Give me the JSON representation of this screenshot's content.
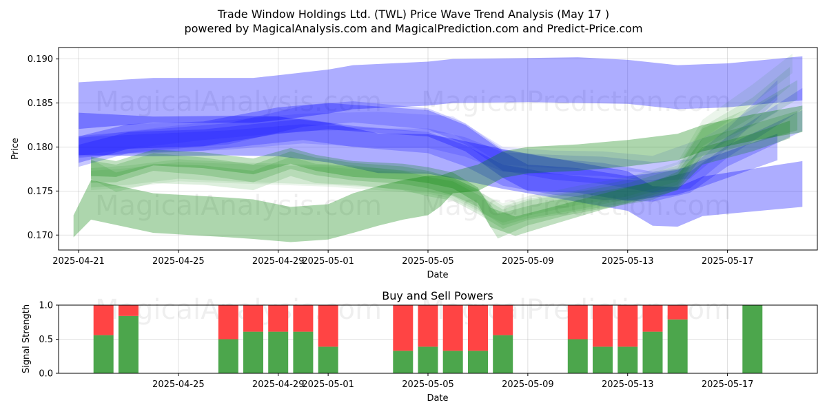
{
  "chart_data": [
    {
      "type": "area",
      "title": "Trade Window Holdings Ltd. (TWL) Price Wave Trend Analysis (May 17 )",
      "subtitle": "powered by MagicalAnalysis.com and MagicalPrediction.com and Predict-Price.com",
      "xlabel": "Date",
      "ylabel": "Price",
      "ylim": [
        0.1683,
        0.1913
      ],
      "xlim_days": [
        -0.8,
        29.6
      ],
      "x_origin": "2025-04-21",
      "xticks": [
        {
          "day": 0,
          "label": "2025-04-21"
        },
        {
          "day": 4,
          "label": "2025-04-25"
        },
        {
          "day": 8,
          "label": "2025-04-29"
        },
        {
          "day": 10,
          "label": "2025-05-01"
        },
        {
          "day": 14,
          "label": "2025-05-05"
        },
        {
          "day": 18,
          "label": "2025-05-09"
        },
        {
          "day": 22,
          "label": "2025-05-13"
        },
        {
          "day": 26,
          "label": "2025-05-17"
        }
      ],
      "yticks": [
        {
          "value": 0.17,
          "label": "0.170"
        },
        {
          "value": 0.175,
          "label": "0.175"
        },
        {
          "value": 0.18,
          "label": "0.180"
        },
        {
          "value": 0.185,
          "label": "0.185"
        },
        {
          "value": 0.19,
          "label": "0.190"
        }
      ],
      "watermarks": [
        "MagicalAnalysis.com",
        "MagicalPrediction.com",
        "MagicalAnalysis.com",
        "MagicalPrediction.com"
      ],
      "bands": [
        {
          "color": "#0000ff",
          "opacity": 0.32,
          "x": [
            0,
            3,
            7,
            8,
            10,
            11,
            14,
            15,
            18,
            20,
            22,
            24,
            26,
            29
          ],
          "y": [
            0.1847,
            0.1853,
            0.1853,
            0.1856,
            0.1863,
            0.1868,
            0.1872,
            0.1875,
            0.1876,
            0.1876,
            0.1874,
            0.1868,
            0.187,
            0.1878
          ],
          "w": [
            0.0053,
            0.0051,
            0.0051,
            0.0051,
            0.005,
            0.005,
            0.005,
            0.005,
            0.005,
            0.0052,
            0.005,
            0.005,
            0.005,
            0.005
          ]
        },
        {
          "color": "#0000ff",
          "opacity": 0.32,
          "x": [
            0,
            3,
            6,
            8,
            10,
            12,
            14,
            15,
            17,
            20,
            22,
            23,
            24,
            25,
            29
          ],
          "y": [
            0.1815,
            0.1812,
            0.1813,
            0.1812,
            0.1805,
            0.1793,
            0.1792,
            0.1787,
            0.1775,
            0.176,
            0.175,
            0.1733,
            0.1732,
            0.1744,
            0.1758
          ],
          "w": [
            0.0048,
            0.0045,
            0.0045,
            0.0045,
            0.0045,
            0.0045,
            0.0045,
            0.0045,
            0.0045,
            0.0045,
            0.0045,
            0.0045,
            0.0045,
            0.0045,
            0.0052
          ]
        },
        {
          "color": "#0000ff",
          "opacity": 0.28,
          "x": [
            0,
            2,
            5,
            8,
            10,
            14,
            15.5,
            17,
            18,
            20,
            22,
            24,
            25,
            28
          ],
          "y": [
            0.1797,
            0.1812,
            0.1815,
            0.183,
            0.1835,
            0.1827,
            0.181,
            0.178,
            0.1765,
            0.1762,
            0.1753,
            0.176,
            0.177,
            0.18
          ],
          "w": [
            0.003,
            0.0028,
            0.0028,
            0.003,
            0.003,
            0.003,
            0.003,
            0.003,
            0.003,
            0.0028,
            0.0028,
            0.0028,
            0.003,
            0.003
          ]
        },
        {
          "color": "#0000ff",
          "opacity": 0.22,
          "x": [
            0,
            2,
            5,
            9,
            11,
            14,
            15.5,
            17,
            19,
            21,
            23,
            24.5,
            26,
            29
          ],
          "y": [
            0.179,
            0.1805,
            0.1808,
            0.182,
            0.1812,
            0.1805,
            0.179,
            0.1768,
            0.1758,
            0.1752,
            0.175,
            0.176,
            0.179,
            0.183
          ],
          "w": [
            0.0025,
            0.0024,
            0.0024,
            0.0024,
            0.0024,
            0.0024,
            0.0024,
            0.0024,
            0.0024,
            0.0024,
            0.0024,
            0.0024,
            0.0024,
            0.0024
          ]
        },
        {
          "color": "#0000ff",
          "opacity": 0.18,
          "x": [
            0,
            3,
            6,
            9,
            11,
            14,
            15.5,
            17,
            19,
            21,
            23,
            24.5,
            26,
            29
          ],
          "y": [
            0.18,
            0.1808,
            0.1815,
            0.1835,
            0.184,
            0.1832,
            0.1815,
            0.1785,
            0.1775,
            0.177,
            0.176,
            0.1765,
            0.18,
            0.1855
          ],
          "w": [
            0.0025,
            0.0024,
            0.0024,
            0.0024,
            0.0024,
            0.0024,
            0.0024,
            0.0024,
            0.0024,
            0.0024,
            0.0024,
            0.0024,
            0.0024,
            0.0024
          ]
        },
        {
          "color": "#0000ff",
          "opacity": 0.14,
          "x": [
            0,
            3,
            6,
            9,
            12,
            14,
            15.5,
            17,
            19,
            21,
            23,
            24.5,
            26,
            28
          ],
          "y": [
            0.18,
            0.1804,
            0.1808,
            0.1815,
            0.181,
            0.181,
            0.18,
            0.1783,
            0.178,
            0.1778,
            0.1772,
            0.1775,
            0.181,
            0.1865
          ],
          "w": [
            0.0022,
            0.0022,
            0.0022,
            0.0022,
            0.0022,
            0.0022,
            0.0022,
            0.0022,
            0.0022,
            0.0022,
            0.0022,
            0.0022,
            0.0022,
            0.0022
          ]
        },
        {
          "color": "#0000ff",
          "opacity": 0.1,
          "x": [
            0,
            2,
            5,
            9,
            12,
            15,
            17,
            19,
            21,
            23,
            25,
            28
          ],
          "y": [
            0.18,
            0.1808,
            0.1818,
            0.1828,
            0.183,
            0.1825,
            0.179,
            0.1786,
            0.1785,
            0.178,
            0.18,
            0.185
          ],
          "w": [
            0.002,
            0.002,
            0.002,
            0.002,
            0.002,
            0.002,
            0.002,
            0.002,
            0.002,
            0.002,
            0.002,
            0.002
          ]
        },
        {
          "color": "#008000",
          "opacity": 0.32,
          "x": [
            -0.2,
            0.5,
            3,
            6,
            7,
            8.5,
            10,
            11,
            12,
            13,
            14,
            14.5,
            15,
            16,
            17,
            18,
            20,
            22,
            24,
            25,
            27,
            29
          ],
          "y": [
            0.171,
            0.174,
            0.1725,
            0.172,
            0.1718,
            0.1712,
            0.1715,
            0.1725,
            0.1733,
            0.174,
            0.1745,
            0.175,
            0.176,
            0.1765,
            0.178,
            0.1785,
            0.1788,
            0.1793,
            0.18,
            0.181,
            0.1822,
            0.1832
          ],
          "w": [
            0.0025,
            0.0045,
            0.0045,
            0.0045,
            0.0045,
            0.004,
            0.004,
            0.0045,
            0.0045,
            0.0045,
            0.0045,
            0.0035,
            0.0025,
            0.003,
            0.003,
            0.003,
            0.003,
            0.003,
            0.003,
            0.003,
            0.003,
            0.003
          ]
        },
        {
          "color": "#008000",
          "opacity": 0.25,
          "x": [
            0.5,
            1.5,
            3,
            5,
            7,
            8.5,
            9.5,
            11,
            13,
            14,
            15,
            16,
            16.5,
            17.5,
            19,
            21,
            23,
            24,
            25,
            27,
            28.5
          ],
          "y": [
            0.1778,
            0.1775,
            0.1788,
            0.1785,
            0.1778,
            0.179,
            0.1782,
            0.1775,
            0.1772,
            0.1768,
            0.1762,
            0.1745,
            0.172,
            0.171,
            0.1722,
            0.1738,
            0.1752,
            0.176,
            0.179,
            0.1805,
            0.182
          ],
          "w": [
            0.0022,
            0.0018,
            0.0018,
            0.0018,
            0.0018,
            0.0018,
            0.0018,
            0.0018,
            0.0018,
            0.0018,
            0.0018,
            0.0018,
            0.0022,
            0.0022,
            0.002,
            0.0018,
            0.0018,
            0.0018,
            0.002,
            0.002,
            0.002
          ]
        },
        {
          "color": "#008000",
          "opacity": 0.18,
          "x": [
            0.5,
            1.5,
            3,
            5,
            7,
            8.5,
            9.5,
            11,
            13,
            14,
            15,
            16,
            16.8,
            18,
            19.5,
            21,
            23,
            24,
            25,
            27,
            28.8
          ],
          "y": [
            0.1772,
            0.177,
            0.1783,
            0.1778,
            0.177,
            0.1785,
            0.1778,
            0.1772,
            0.1768,
            0.1763,
            0.1755,
            0.1742,
            0.171,
            0.1722,
            0.1732,
            0.174,
            0.175,
            0.1762,
            0.18,
            0.1815,
            0.183
          ],
          "w": [
            0.0025,
            0.002,
            0.002,
            0.002,
            0.002,
            0.002,
            0.002,
            0.002,
            0.002,
            0.002,
            0.002,
            0.002,
            0.0028,
            0.0022,
            0.002,
            0.002,
            0.002,
            0.002,
            0.002,
            0.0022,
            0.0022
          ]
        },
        {
          "color": "#008000",
          "opacity": 0.13,
          "x": [
            0.5,
            1.5,
            3,
            5,
            7,
            8.5,
            9.5,
            11,
            13,
            14,
            15,
            16,
            17,
            18,
            20,
            22,
            24,
            25,
            27,
            28.8
          ],
          "y": [
            0.1775,
            0.176,
            0.177,
            0.1768,
            0.1762,
            0.1778,
            0.177,
            0.1768,
            0.1762,
            0.1755,
            0.175,
            0.1735,
            0.1718,
            0.1728,
            0.1738,
            0.1748,
            0.1765,
            0.181,
            0.1835,
            0.1865
          ],
          "w": [
            0.0022,
            0.0022,
            0.0022,
            0.0022,
            0.0022,
            0.0022,
            0.0022,
            0.0022,
            0.0022,
            0.0022,
            0.0022,
            0.0022,
            0.0022,
            0.0022,
            0.0022,
            0.0022,
            0.0022,
            0.0022,
            0.0022,
            0.0022
          ]
        },
        {
          "color": "#008000",
          "opacity": 0.1,
          "x": [
            0.5,
            2,
            4,
            6,
            8,
            10,
            12,
            14,
            15,
            16,
            17,
            18,
            20,
            22,
            24,
            25,
            27,
            28.5
          ],
          "y": [
            0.1765,
            0.1768,
            0.1775,
            0.1772,
            0.177,
            0.1768,
            0.1765,
            0.176,
            0.1755,
            0.174,
            0.1722,
            0.173,
            0.174,
            0.1752,
            0.1768,
            0.1812,
            0.1845,
            0.188
          ],
          "w": [
            0.0022,
            0.0022,
            0.0022,
            0.0022,
            0.0022,
            0.0022,
            0.0022,
            0.0022,
            0.0022,
            0.0022,
            0.0022,
            0.0022,
            0.0022,
            0.0022,
            0.0022,
            0.0022,
            0.0022,
            0.0022
          ]
        },
        {
          "color": "#008000",
          "opacity": 0.08,
          "x": [
            0.5,
            2,
            4,
            6,
            8,
            10,
            12,
            14,
            15,
            16,
            17,
            18,
            20,
            22,
            24,
            25,
            27,
            28.6
          ],
          "y": [
            0.1762,
            0.1765,
            0.1772,
            0.177,
            0.1768,
            0.1766,
            0.1762,
            0.1758,
            0.1752,
            0.1738,
            0.1725,
            0.1733,
            0.1745,
            0.1755,
            0.1772,
            0.182,
            0.186,
            0.1895
          ],
          "w": [
            0.0022,
            0.0022,
            0.0022,
            0.0022,
            0.0022,
            0.0022,
            0.0022,
            0.0022,
            0.0022,
            0.0022,
            0.0022,
            0.0022,
            0.0022,
            0.0022,
            0.0022,
            0.0022,
            0.0022,
            0.0022
          ]
        }
      ]
    },
    {
      "type": "bar",
      "title": "Buy and Sell Powers",
      "xlabel": "Date",
      "ylabel": "Signal Strength",
      "ylim": [
        0.0,
        1.0
      ],
      "xlim_days": [
        -0.8,
        29.6
      ],
      "x_origin": "2025-04-21",
      "xticks": [
        {
          "day": 4,
          "label": "2025-04-25"
        },
        {
          "day": 8,
          "label": "2025-04-29"
        },
        {
          "day": 10,
          "label": "2025-05-01"
        },
        {
          "day": 14,
          "label": "2025-05-05"
        },
        {
          "day": 18,
          "label": "2025-05-09"
        },
        {
          "day": 22,
          "label": "2025-05-13"
        },
        {
          "day": 26,
          "label": "2025-05-17"
        }
      ],
      "yticks": [
        {
          "value": 0.0,
          "label": "0.0"
        },
        {
          "value": 0.5,
          "label": "0.5"
        },
        {
          "value": 1.0,
          "label": "1.0"
        }
      ],
      "buy_color": "#4ca64c",
      "sell_color": "#ff4444",
      "days": [
        1,
        2,
        6,
        7,
        8,
        9,
        10,
        13,
        14,
        15,
        16,
        17,
        20,
        21,
        22,
        23,
        24,
        27
      ],
      "buy": [
        0.56,
        0.84,
        0.5,
        0.61,
        0.61,
        0.61,
        0.39,
        0.33,
        0.39,
        0.33,
        0.33,
        0.56,
        0.5,
        0.39,
        0.39,
        0.61,
        0.79,
        1.0
      ]
    }
  ]
}
